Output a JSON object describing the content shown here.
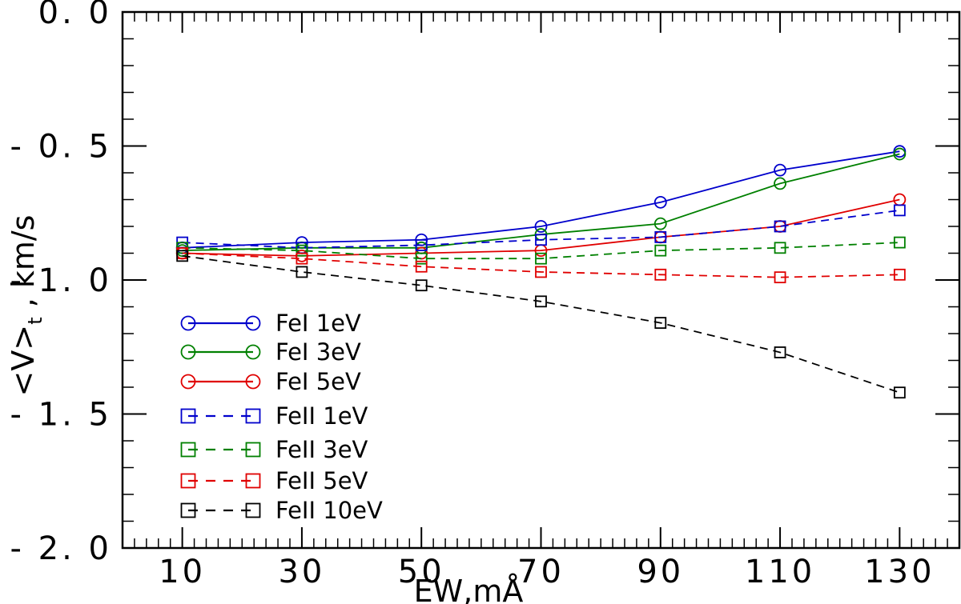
{
  "chart_data": {
    "type": "line",
    "xlabel": "EW,mÅ",
    "ylabel": "<V>t , km/s",
    "ylabel_main": "<V>",
    "ylabel_sub": "t",
    "ylabel_rest": " , km/s",
    "xlim": [
      0,
      140
    ],
    "ylim": [
      -2.0,
      0.0
    ],
    "x_ticks": [
      10,
      30,
      50,
      70,
      90,
      110,
      130
    ],
    "x_tick_labels": [
      "10",
      "30",
      "50",
      "70",
      "90",
      "110",
      "130"
    ],
    "y_ticks": [
      0.0,
      -0.5,
      -1.0,
      -1.5,
      -2.0
    ],
    "y_tick_labels": [
      "0. 0",
      "- 0. 5",
      "- 1. 0",
      "- 1. 5",
      "- 2. 0"
    ],
    "x": [
      10,
      30,
      50,
      70,
      90,
      110,
      130
    ],
    "legend_position": "lower-left",
    "series": [
      {
        "name": "FeI 1eV",
        "color": "#0000cc",
        "marker": "circle",
        "dashed": false,
        "values": [
          -0.88,
          -0.86,
          -0.85,
          -0.8,
          -0.71,
          -0.59,
          -0.52
        ]
      },
      {
        "name": "FeI 3eV",
        "color": "#008000",
        "marker": "circle",
        "dashed": false,
        "values": [
          -0.89,
          -0.88,
          -0.88,
          -0.83,
          -0.79,
          -0.64,
          -0.53
        ]
      },
      {
        "name": "FeI 5eV",
        "color": "#e00000",
        "marker": "circle",
        "dashed": false,
        "values": [
          -0.9,
          -0.91,
          -0.9,
          -0.89,
          -0.84,
          -0.8,
          -0.7
        ]
      },
      {
        "name": "FeII 1eV",
        "color": "#0000cc",
        "marker": "square",
        "dashed": true,
        "values": [
          -0.86,
          -0.88,
          -0.87,
          -0.85,
          -0.84,
          -0.8,
          -0.74
        ]
      },
      {
        "name": "FeII 3eV",
        "color": "#008000",
        "marker": "square",
        "dashed": true,
        "values": [
          -0.88,
          -0.89,
          -0.92,
          -0.92,
          -0.89,
          -0.88,
          -0.86
        ]
      },
      {
        "name": "FeII 5eV",
        "color": "#e00000",
        "marker": "square",
        "dashed": true,
        "values": [
          -0.9,
          -0.92,
          -0.95,
          -0.97,
          -0.98,
          -0.99,
          -0.98
        ]
      },
      {
        "name": "FeII 10eV",
        "color": "#000000",
        "marker": "square",
        "dashed": true,
        "values": [
          -0.91,
          -0.97,
          -1.02,
          -1.08,
          -1.16,
          -1.27,
          -1.42
        ]
      }
    ]
  }
}
